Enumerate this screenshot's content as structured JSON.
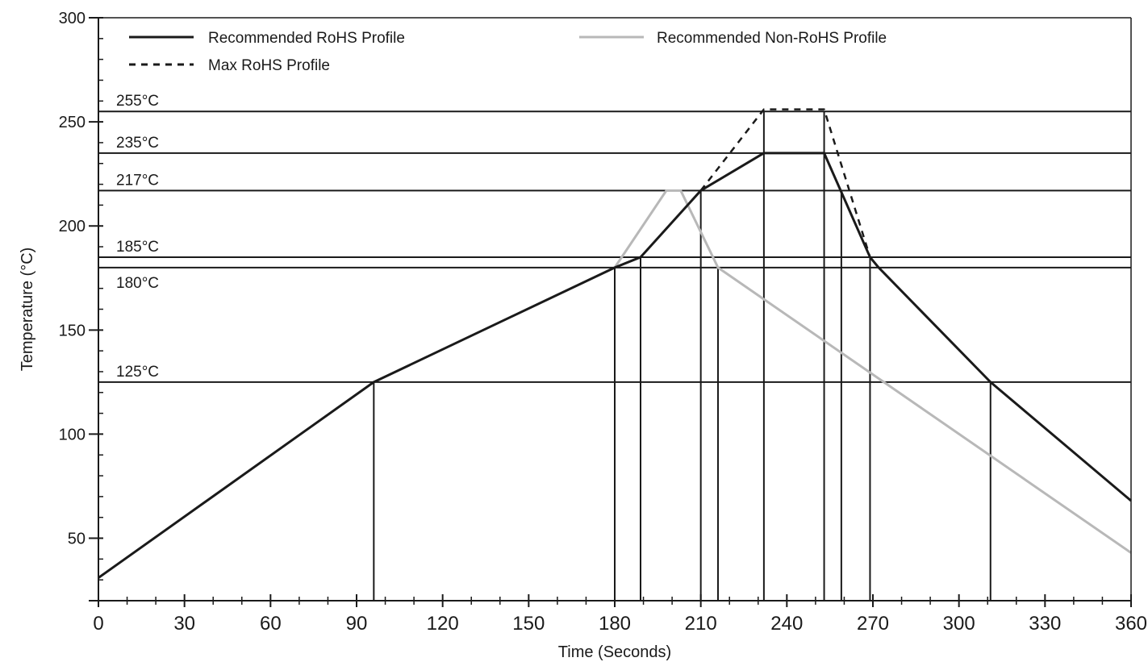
{
  "chart_data": {
    "type": "line",
    "xlabel": "Time (Seconds)",
    "ylabel": "Temperature (°C)",
    "xlim": [
      0,
      360
    ],
    "ylim": [
      20,
      300
    ],
    "x_ticks": [
      0,
      30,
      60,
      90,
      120,
      150,
      180,
      210,
      240,
      270,
      300,
      330,
      360
    ],
    "y_ticks": [
      50,
      100,
      150,
      200,
      250,
      300
    ],
    "grid": false,
    "legend_position": "top",
    "reference_lines": [
      {
        "label": "255°C",
        "value": 255
      },
      {
        "label": "235°C",
        "value": 235
      },
      {
        "label": "217°C",
        "value": 217
      },
      {
        "label": "185°C",
        "value": 185
      },
      {
        "label": "180°C",
        "value": 180
      },
      {
        "label": "125°C",
        "value": 125
      }
    ],
    "vertical_markers": [
      {
        "x": 96,
        "y": 125
      },
      {
        "x": 180,
        "y": 180
      },
      {
        "x": 189,
        "y": 185
      },
      {
        "x": 210,
        "y": 217
      },
      {
        "x": 216,
        "y": 180
      },
      {
        "x": 232,
        "y": 255
      },
      {
        "x": 253,
        "y": 255
      },
      {
        "x": 259,
        "y": 217
      },
      {
        "x": 269,
        "y": 185
      },
      {
        "x": 311,
        "y": 125
      }
    ],
    "series": [
      {
        "name": "Recommended RoHS Profile",
        "color": "#1a1a1a",
        "dash": "solid",
        "points": [
          [
            0,
            31
          ],
          [
            96,
            125
          ],
          [
            180,
            180
          ],
          [
            189,
            185
          ],
          [
            210,
            217
          ],
          [
            232,
            235
          ],
          [
            253,
            235
          ],
          [
            269,
            185
          ],
          [
            272,
            180
          ],
          [
            311,
            125
          ],
          [
            360,
            68
          ]
        ]
      },
      {
        "name": "Recommended Non-RoHS Profile",
        "color": "#b8b8b8",
        "dash": "solid",
        "points": [
          [
            180,
            180
          ],
          [
            198,
            217
          ],
          [
            203,
            217
          ],
          [
            216,
            180
          ],
          [
            360,
            43
          ]
        ]
      },
      {
        "name": "Max RoHS Profile",
        "color": "#1a1a1a",
        "dash": "dashed",
        "points": [
          [
            210,
            217
          ],
          [
            232,
            256
          ],
          [
            253,
            256
          ],
          [
            269,
            185
          ]
        ]
      }
    ]
  }
}
